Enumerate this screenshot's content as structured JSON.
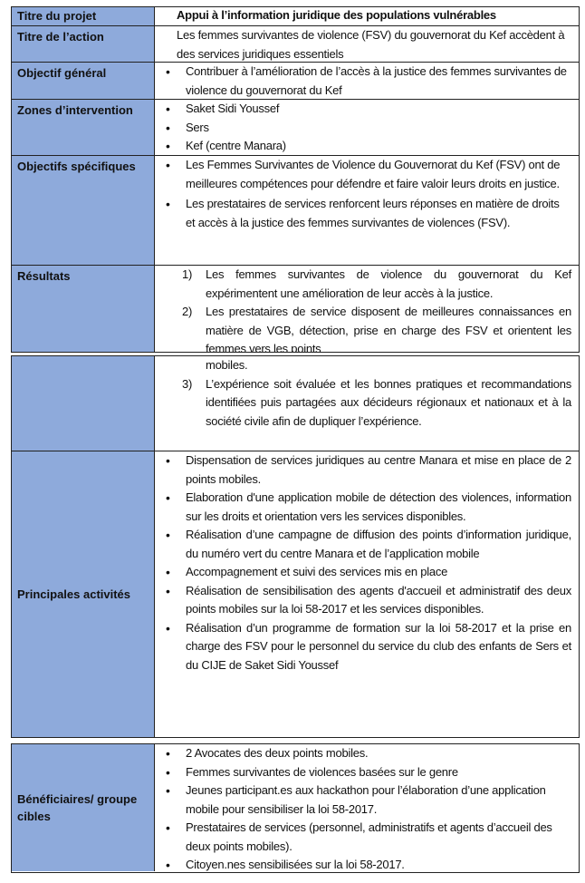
{
  "colors": {
    "label_bg": "#8eaadb",
    "border": "#222222"
  },
  "rows": {
    "project": {
      "label": "Titre du projet",
      "value": "Appui à l’information juridique des populations vulnérables"
    },
    "action": {
      "label": "Titre de l’action",
      "value": "Les femmes survivantes de violence (FSV) du gouvernorat du Kef accèdent à des services juridiques essentiels"
    },
    "general": {
      "label": "Objectif général",
      "items": [
        "Contribuer à l’amélioration de l’accès à la justice des femmes survivantes de violence du gouvernorat du Kef"
      ]
    },
    "zones": {
      "label": "Zones d’intervention",
      "items": [
        "Saket Sidi Youssef",
        "Sers",
        "Kef (centre Manara)"
      ]
    },
    "specific": {
      "label": "Objectifs spécifiques",
      "items": [
        "Les Femmes Survivantes de Violence du Gouvernorat du Kef (FSV) ont de meilleures compétences pour défendre et faire valoir leurs droits en justice.",
        "Les prestataires de services renforcent leurs réponses en matière de droits et accès à la justice des femmes survivantes de violences (FSV)."
      ]
    },
    "results": {
      "label": "Résultats",
      "items": [
        {
          "num": "1)",
          "text": "Les femmes survivantes de violence du gouvernorat du Kef expérimentent une amélioration de leur accès à la justice."
        },
        {
          "num": "2)",
          "text": "Les prestataires de service disposent de meilleures connaissances en matière de VGB, détection, prise en charge des FSV et orientent les femmes vers les points"
        }
      ],
      "continued": "mobiles.",
      "items_cont": [
        {
          "num": "3)",
          "text": "L’expérience soit évaluée et les bonnes pratiques et recommandations identifiées puis partagées aux décideurs régionaux et nationaux et à la société civile afin de dupliquer l’expérience."
        }
      ]
    },
    "activities": {
      "label": "Principales activités",
      "items": [
        "Dispensation de services juridiques au centre Manara et mise en place de 2 points mobiles.",
        "Elaboration d'une application mobile de détection des violences, information sur les droits et orientation vers les services disponibles.",
        "Réalisation d’une campagne de diffusion des points d’information juridique, du numéro vert du centre Manara et de l’application mobile",
        "Accompagnement et suivi des services mis en place",
        "Réalisation de sensibilisation des agents d'accueil et administratif des deux points mobiles sur la loi 58-2017 et les services disponibles.",
        "Réalisation d’un programme de formation sur la loi 58-2017 et la prise en charge des FSV pour le personnel du service du club des enfants de Sers et du CIJE de Saket Sidi Youssef"
      ]
    },
    "beneficiaries": {
      "label": "Bénéficiaires/ groupe cibles",
      "items": [
        "2 Avocates des deux points mobiles.",
        "Femmes survivantes de violences basées sur le genre",
        "Jeunes participant.es aux hackathon pour l’élaboration d’une application mobile pour sensibiliser la loi 58-2017.",
        "Prestataires de services (personnel, administratifs et agents d’accueil des deux points mobiles).",
        "Citoyen.nes sensibilisées sur la loi 58-2017."
      ]
    }
  }
}
